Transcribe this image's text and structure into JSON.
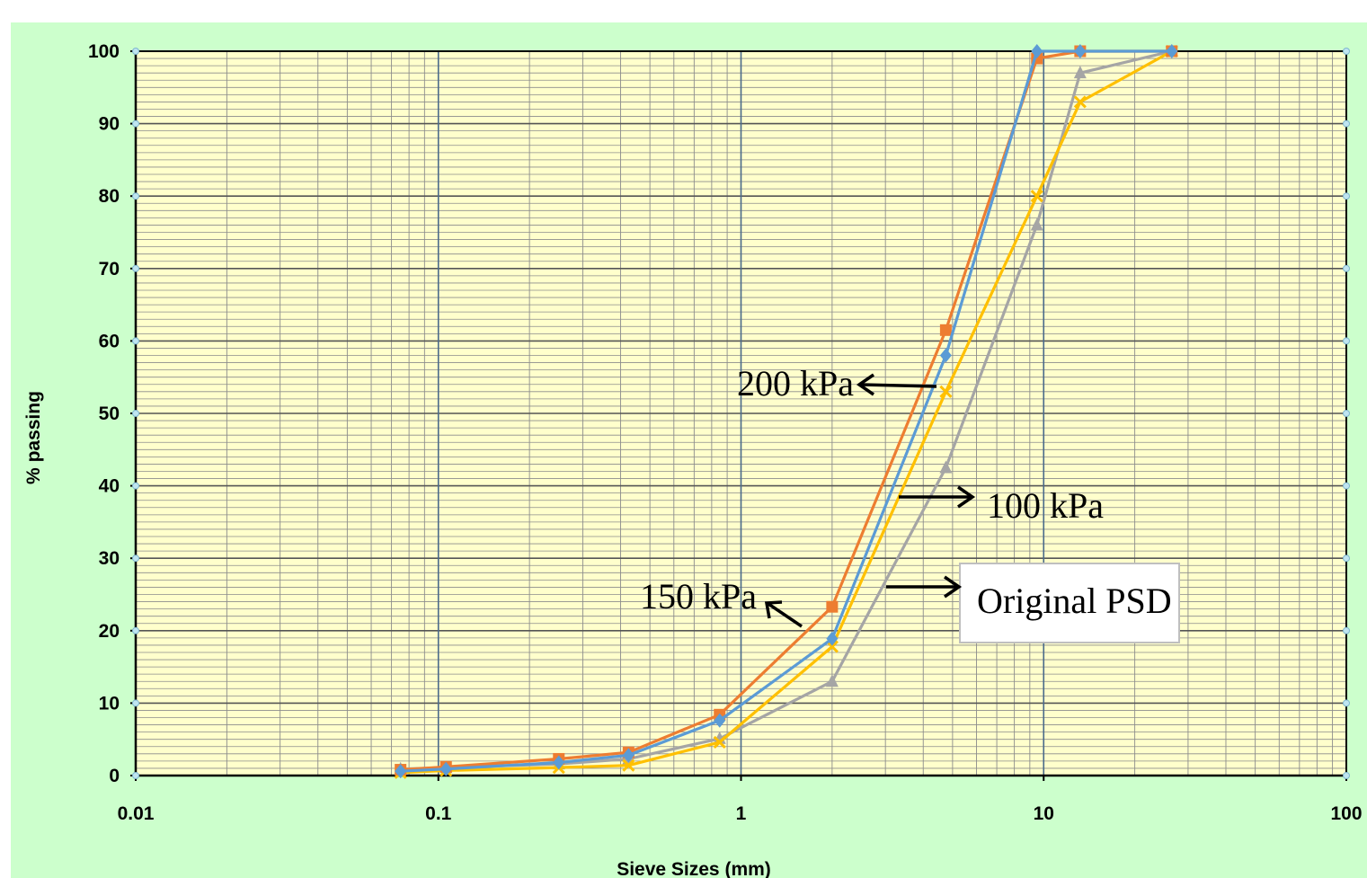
{
  "chart_data": {
    "type": "line",
    "title": "",
    "xlabel": "Sieve Sizes (mm)",
    "ylabel": "% passing",
    "x_scale": "log",
    "xlim": [
      0.01,
      100
    ],
    "ylim": [
      0,
      100
    ],
    "x_ticks": [
      "0.01",
      "0.1",
      "1",
      "10",
      "100"
    ],
    "y_ticks": [
      "0",
      "10",
      "20",
      "30",
      "40",
      "50",
      "60",
      "70",
      "80",
      "90",
      "100"
    ],
    "grid": true,
    "legend": "none",
    "colors": {
      "background": "#ccffcc",
      "plot_area": "#ffffcc",
      "gridline": "#8c8c8c",
      "major_gridline": "#555555"
    },
    "series": [
      {
        "color": "#ed7d31",
        "marker": "square",
        "x": [
          0.075,
          0.106,
          0.25,
          0.425,
          0.85,
          2,
          4.75,
          9.5,
          13.2,
          26.5
        ],
        "y": [
          0.8,
          1.2,
          2.3,
          3.2,
          8.4,
          23.3,
          61.5,
          99,
          100,
          100
        ]
      },
      {
        "color": "#5b9bd5",
        "marker": "diamond",
        "x": [
          0.075,
          0.106,
          0.25,
          0.425,
          0.85,
          2,
          4.75,
          9.5,
          13.2,
          26.5
        ],
        "y": [
          0.6,
          0.9,
          1.8,
          2.8,
          7.6,
          18.9,
          58,
          100,
          100,
          100
        ]
      },
      {
        "color": "#a5a5a5",
        "marker": "triangle",
        "x": [
          0.075,
          0.106,
          0.25,
          0.425,
          0.85,
          2,
          4.75,
          9.5,
          13.2,
          26.5
        ],
        "y": [
          0.9,
          1.1,
          1.6,
          2.3,
          5.1,
          13,
          42.5,
          76,
          97,
          100
        ]
      },
      {
        "color": "#ffc000",
        "marker": "x",
        "x": [
          0.075,
          0.106,
          0.25,
          0.425,
          0.85,
          2,
          4.75,
          9.5,
          13.2,
          26.5
        ],
        "y": [
          0.4,
          0.7,
          1.1,
          1.4,
          4.6,
          17.8,
          53,
          80,
          93,
          100
        ]
      }
    ],
    "annotations": [
      {
        "text": "200 kPa",
        "boxed": false
      },
      {
        "text": "100 kPa",
        "boxed": false
      },
      {
        "text": "150 kPa",
        "boxed": false
      },
      {
        "text": "Original PSD",
        "boxed": true
      }
    ]
  }
}
